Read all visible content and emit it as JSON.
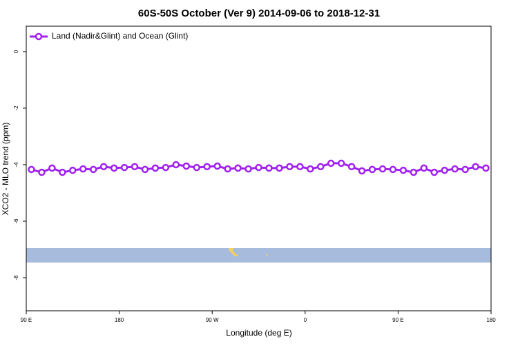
{
  "chart_data": {
    "type": "line",
    "title": "60S-50S October (Ver 9)   2014-09-06 to 2018-12-31",
    "x_label": "Longitude (deg E)",
    "y_label": "XCO2 - MLO trend (ppm)",
    "legend": "top-left",
    "x": [
      95,
      105,
      115,
      125,
      135,
      145,
      155,
      165,
      175,
      185,
      195,
      205,
      215,
      225,
      235,
      245,
      255,
      265,
      275,
      285,
      295,
      305,
      315,
      325,
      335,
      345,
      355,
      365,
      375,
      385,
      395,
      405,
      415,
      425,
      435,
      445,
      455,
      465,
      475,
      485,
      495,
      505,
      515,
      525,
      535
    ],
    "series": [
      {
        "name": "Land (Nadir&Glint) and Ocean (Glint)",
        "color": "#a020f0",
        "values": [
          -4.17,
          -4.27,
          -4.12,
          -4.27,
          -4.2,
          -4.15,
          -4.17,
          -4.07,
          -4.12,
          -4.1,
          -4.07,
          -4.17,
          -4.12,
          -4.1,
          -4.0,
          -4.05,
          -4.1,
          -4.07,
          -4.05,
          -4.15,
          -4.12,
          -4.15,
          -4.1,
          -4.12,
          -4.12,
          -4.07,
          -4.07,
          -4.15,
          -4.07,
          -3.95,
          -3.95,
          -4.07,
          -4.22,
          -4.17,
          -4.15,
          -4.17,
          -4.2,
          -4.27,
          -4.12,
          -4.27,
          -4.2,
          -4.15,
          -4.17,
          -4.07,
          -4.12
        ]
      }
    ],
    "xlim": [
      90,
      540
    ],
    "xticks": [
      {
        "value": 90,
        "label": "90 E"
      },
      {
        "value": 180,
        "label": "180"
      },
      {
        "value": 270,
        "label": "90 W"
      },
      {
        "value": 360,
        "label": "0"
      },
      {
        "value": 450,
        "label": "90 E"
      },
      {
        "value": 540,
        "label": "180"
      }
    ],
    "ylim": [
      -9.17,
      0.9
    ],
    "yticks": [
      0,
      -2,
      -4,
      -6,
      -8
    ]
  }
}
